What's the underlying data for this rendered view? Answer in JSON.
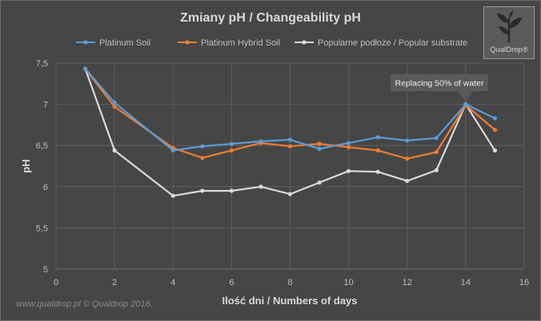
{
  "chart_data": {
    "type": "line",
    "title": "Zmiany pH / Changeability pH",
    "xlabel": "Ilość dni / Numbers of days",
    "ylabel": "pH",
    "xlim": [
      0,
      16
    ],
    "ylim": [
      5,
      7.5
    ],
    "x_ticks": [
      "0",
      "2",
      "4",
      "6",
      "8",
      "10",
      "12",
      "14",
      "16"
    ],
    "y_ticks": [
      "5",
      "5,5",
      "6",
      "6,5",
      "7",
      "7,5"
    ],
    "grid": true,
    "legend_position": "top",
    "series": [
      {
        "name": "Platinum Soil",
        "color": "#5b9bd5",
        "x": [
          1,
          2,
          4,
          5,
          6,
          7,
          8,
          9,
          10,
          11,
          12,
          13,
          14,
          15
        ],
        "y": [
          7.43,
          7.02,
          6.44,
          6.49,
          6.52,
          6.55,
          6.57,
          6.46,
          6.53,
          6.6,
          6.56,
          6.59,
          7.0,
          6.83
        ]
      },
      {
        "name": "Platinum Hybrid Soil",
        "color": "#ed7d31",
        "x": [
          1,
          2,
          4,
          5,
          6,
          7,
          8,
          9,
          10,
          11,
          12,
          13,
          14,
          15
        ],
        "y": [
          7.43,
          6.97,
          6.47,
          6.35,
          6.44,
          6.53,
          6.49,
          6.52,
          6.48,
          6.44,
          6.34,
          6.42,
          6.99,
          6.69
        ]
      },
      {
        "name": "Popularne podłoże / Popular substrate",
        "color": "#d9d9d9",
        "x": [
          1,
          2,
          4,
          5,
          6,
          7,
          8,
          9,
          10,
          11,
          12,
          13,
          14,
          15
        ],
        "y": [
          7.43,
          6.44,
          5.89,
          5.95,
          5.95,
          6.0,
          5.91,
          6.05,
          6.19,
          6.18,
          6.07,
          6.2,
          7.0,
          6.44
        ]
      }
    ],
    "annotation": {
      "text": "Replacing 50% of water",
      "x": 14,
      "y": 7.0
    }
  },
  "logo": {
    "text": "QualDrop®"
  },
  "footer": "www.qualdrop.pl  © Qualdrop 2016."
}
